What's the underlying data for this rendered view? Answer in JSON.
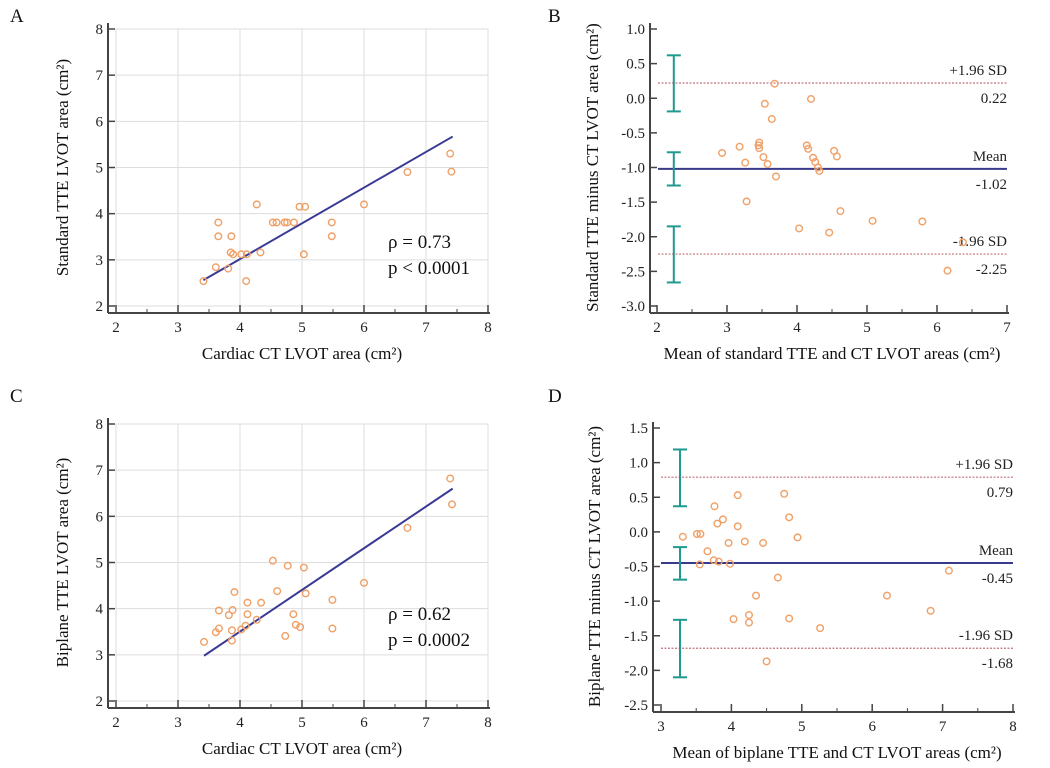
{
  "chart_data": [
    {
      "panel": "A",
      "type": "scatter",
      "xlabel": "Cardiac CT LVOT area (cm²)",
      "ylabel": "Standard TTE LVOT area (cm²)",
      "xlim": [
        2,
        8
      ],
      "ylim": [
        2,
        8
      ],
      "xticks": [
        2,
        3,
        4,
        5,
        6,
        7,
        8
      ],
      "yticks": [
        2,
        3,
        4,
        5,
        6,
        7,
        8
      ],
      "grid": true,
      "annotations": [
        "ρ = 0.73",
        "p < 0.0001"
      ],
      "fit_line": [
        [
          3.41,
          2.56
        ],
        [
          7.43,
          5.67
        ]
      ],
      "points": [
        [
          3.41,
          2.54
        ],
        [
          3.61,
          2.84
        ],
        [
          3.65,
          3.81
        ],
        [
          3.65,
          3.51
        ],
        [
          3.81,
          2.81
        ],
        [
          3.85,
          3.16
        ],
        [
          3.86,
          3.51
        ],
        [
          3.89,
          3.12
        ],
        [
          4.02,
          3.12
        ],
        [
          4.11,
          3.12
        ],
        [
          4.1,
          2.54
        ],
        [
          4.27,
          4.2
        ],
        [
          4.33,
          3.16
        ],
        [
          4.53,
          3.81
        ],
        [
          4.59,
          3.81
        ],
        [
          4.72,
          3.81
        ],
        [
          4.76,
          3.81
        ],
        [
          4.87,
          3.81
        ],
        [
          4.96,
          4.15
        ],
        [
          5.05,
          4.15
        ],
        [
          5.03,
          3.12
        ],
        [
          5.48,
          3.81
        ],
        [
          5.48,
          3.51
        ],
        [
          6.0,
          4.2
        ],
        [
          6.7,
          4.9
        ],
        [
          7.39,
          5.3
        ],
        [
          7.41,
          4.91
        ]
      ]
    },
    {
      "panel": "B",
      "type": "scatter",
      "xlabel": "Mean of standard TTE and CT LVOT areas (cm²)",
      "ylabel": "Standard TTE minus CT LVOT area (cm²)",
      "xlim": [
        2,
        7
      ],
      "ylim": [
        -3.0,
        1.0
      ],
      "xticks": [
        2,
        3,
        4,
        5,
        6,
        7
      ],
      "yticks": [
        -3.0,
        -2.5,
        -2.0,
        -1.5,
        -1.0,
        -0.5,
        0.0,
        0.5,
        1.0
      ],
      "grid": false,
      "reference_lines": [
        {
          "name": "+1.96 SD",
          "value": 0.22,
          "label": "+1.96 SD",
          "value_label": "0.22",
          "style": "dotted"
        },
        {
          "name": "Mean",
          "value": -1.02,
          "label": "Mean",
          "value_label": "-1.02",
          "style": "solid"
        },
        {
          "name": "-1.96 SD",
          "value": -2.25,
          "label": "-1.96 SD",
          "value_label": "-2.25",
          "style": "dotted"
        }
      ],
      "error_bars_x": 2.24,
      "error_bars": [
        [
          -0.19,
          0.62
        ],
        [
          -1.26,
          -0.78
        ],
        [
          -2.66,
          -1.85
        ]
      ],
      "points": [
        [
          2.93,
          -0.79
        ],
        [
          3.18,
          -0.7
        ],
        [
          3.26,
          -0.93
        ],
        [
          3.28,
          -1.49
        ],
        [
          3.45,
          -0.68
        ],
        [
          3.46,
          -0.64
        ],
        [
          3.46,
          -0.72
        ],
        [
          3.52,
          -0.85
        ],
        [
          3.54,
          -0.08
        ],
        [
          3.58,
          -0.95
        ],
        [
          3.64,
          -0.3
        ],
        [
          3.68,
          0.21
        ],
        [
          3.7,
          -1.13
        ],
        [
          4.03,
          -1.88
        ],
        [
          4.14,
          -0.68
        ],
        [
          4.16,
          -0.73
        ],
        [
          4.2,
          -0.01
        ],
        [
          4.23,
          -0.86
        ],
        [
          4.26,
          -0.92
        ],
        [
          4.3,
          -1.0
        ],
        [
          4.32,
          -1.05
        ],
        [
          4.46,
          -1.94
        ],
        [
          4.53,
          -0.76
        ],
        [
          4.57,
          -0.84
        ],
        [
          4.62,
          -1.63
        ],
        [
          5.08,
          -1.77
        ],
        [
          5.79,
          -1.78
        ],
        [
          6.15,
          -2.49
        ],
        [
          6.37,
          -2.08
        ]
      ]
    },
    {
      "panel": "C",
      "type": "scatter",
      "xlabel": "Cardiac CT LVOT area (cm²)",
      "ylabel": "Biplane  TTE LVOT area (cm²)",
      "xlim": [
        2,
        8
      ],
      "ylim": [
        2,
        8
      ],
      "xticks": [
        2,
        3,
        4,
        5,
        6,
        7,
        8
      ],
      "yticks": [
        2,
        3,
        4,
        5,
        6,
        7,
        8
      ],
      "grid": true,
      "annotations": [
        "ρ = 0.62",
        "p = 0.0002"
      ],
      "fit_line": [
        [
          3.42,
          2.98
        ],
        [
          7.43,
          6.6
        ]
      ],
      "points": [
        [
          3.42,
          3.28
        ],
        [
          3.61,
          3.49
        ],
        [
          3.66,
          3.57
        ],
        [
          3.66,
          3.96
        ],
        [
          3.82,
          3.86
        ],
        [
          3.87,
          3.53
        ],
        [
          3.87,
          3.31
        ],
        [
          3.88,
          3.97
        ],
        [
          3.91,
          4.36
        ],
        [
          4.02,
          3.55
        ],
        [
          4.09,
          3.63
        ],
        [
          4.12,
          4.13
        ],
        [
          4.12,
          3.88
        ],
        [
          4.27,
          3.76
        ],
        [
          4.34,
          4.13
        ],
        [
          4.53,
          5.04
        ],
        [
          4.6,
          4.38
        ],
        [
          4.73,
          3.41
        ],
        [
          4.77,
          4.93
        ],
        [
          4.86,
          3.88
        ],
        [
          4.9,
          3.65
        ],
        [
          4.97,
          3.6
        ],
        [
          5.03,
          4.89
        ],
        [
          5.06,
          4.33
        ],
        [
          5.49,
          4.19
        ],
        [
          5.49,
          3.57
        ],
        [
          6.0,
          4.56
        ],
        [
          6.7,
          5.75
        ],
        [
          7.39,
          6.82
        ],
        [
          7.42,
          6.26
        ]
      ]
    },
    {
      "panel": "D",
      "type": "scatter",
      "xlabel": "Mean of biplane TTE and CT LVOT areas (cm²)",
      "ylabel": "Biplane TTE minus CT LVOT area (cm²)",
      "xlim": [
        3,
        8
      ],
      "ylim": [
        -2.5,
        1.5
      ],
      "xticks": [
        3,
        4,
        5,
        6,
        7,
        8
      ],
      "yticks": [
        -2.5,
        -2.0,
        -1.5,
        -1.0,
        -0.5,
        0.0,
        0.5,
        1.0,
        1.5
      ],
      "grid": false,
      "reference_lines": [
        {
          "name": "+1.96 SD",
          "value": 0.79,
          "label": "+1.96 SD",
          "value_label": "0.79",
          "style": "dotted"
        },
        {
          "name": "Mean",
          "value": -0.45,
          "label": "Mean",
          "value_label": "-0.45",
          "style": "solid"
        },
        {
          "name": "-1.96 SD",
          "value": -1.68,
          "label": "-1.96 SD",
          "value_label": "-1.68",
          "style": "dotted"
        }
      ],
      "error_bars_x": 3.27,
      "error_bars": [
        [
          0.37,
          1.19
        ],
        [
          -0.69,
          -0.22
        ],
        [
          -2.1,
          -1.27
        ]
      ],
      "points": [
        [
          3.31,
          -0.07
        ],
        [
          3.51,
          -0.03
        ],
        [
          3.56,
          -0.03
        ],
        [
          3.55,
          -0.47
        ],
        [
          3.66,
          -0.28
        ],
        [
          3.76,
          0.37
        ],
        [
          3.75,
          -0.41
        ],
        [
          3.8,
          0.12
        ],
        [
          3.82,
          -0.43
        ],
        [
          3.88,
          0.18
        ],
        [
          3.96,
          -0.16
        ],
        [
          3.98,
          -0.46
        ],
        [
          4.03,
          -1.26
        ],
        [
          4.09,
          0.53
        ],
        [
          4.09,
          0.08
        ],
        [
          4.19,
          -0.14
        ],
        [
          4.25,
          -1.2
        ],
        [
          4.25,
          -1.31
        ],
        [
          4.35,
          -0.92
        ],
        [
          4.45,
          -0.16
        ],
        [
          4.5,
          -1.87
        ],
        [
          4.66,
          -0.66
        ],
        [
          4.75,
          0.55
        ],
        [
          4.82,
          0.21
        ],
        [
          4.82,
          -1.25
        ],
        [
          4.94,
          -0.08
        ],
        [
          5.26,
          -1.39
        ],
        [
          6.21,
          -0.92
        ],
        [
          6.83,
          -1.14
        ],
        [
          7.09,
          -0.56
        ]
      ]
    }
  ],
  "colors": {
    "points": "#f0a066",
    "fit_line": "#3a3a96",
    "mean_line": "#3a3a8a",
    "sd_line": "#c0707a",
    "error_bar": "#1f9a8e",
    "grid": "#dddddd",
    "axis": "#444444"
  }
}
